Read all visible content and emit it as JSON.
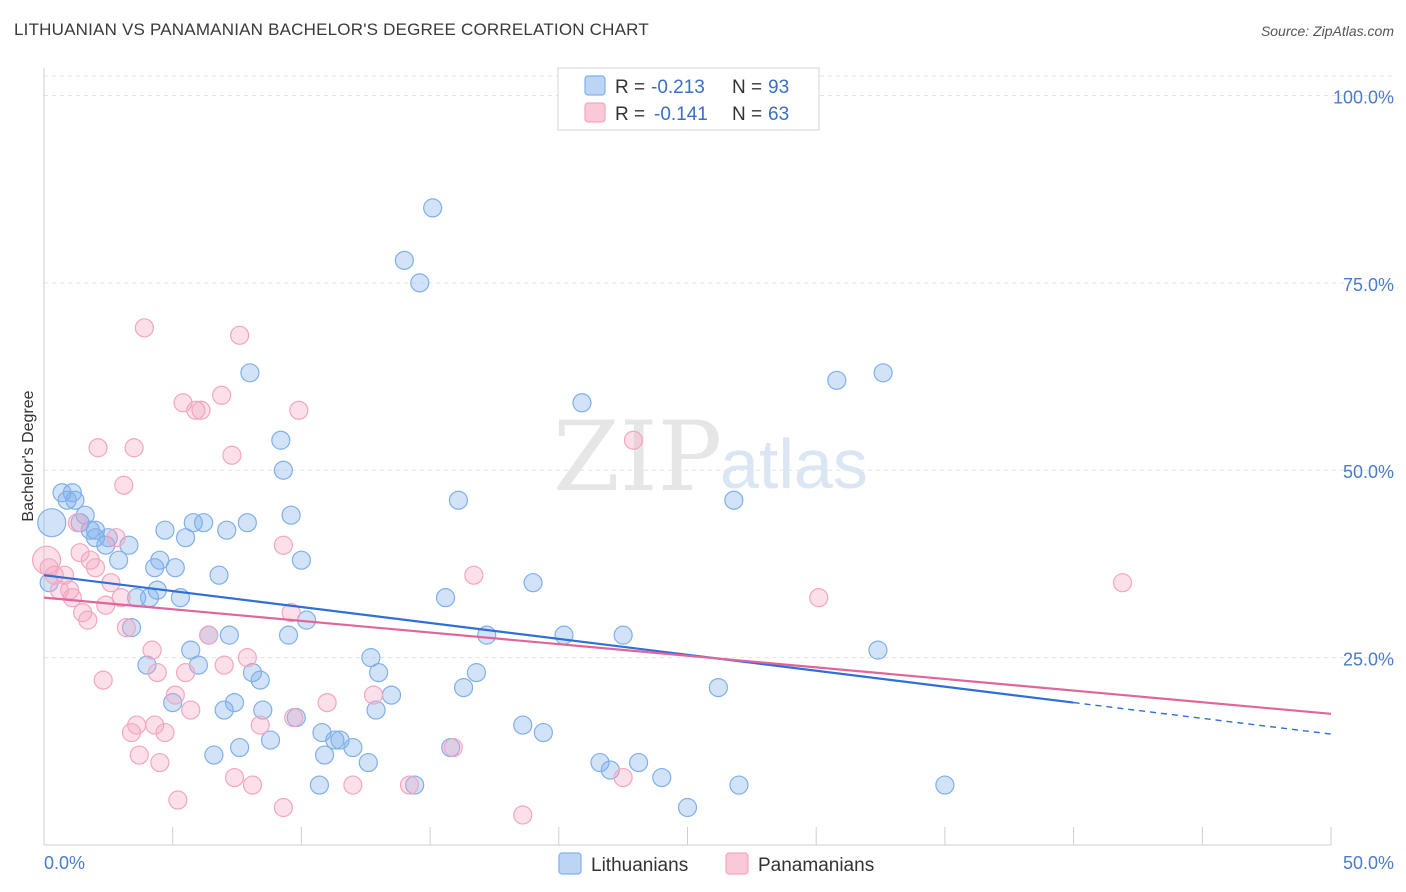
{
  "title": "LITHUANIAN VS PANAMANIAN BACHELOR'S DEGREE CORRELATION CHART",
  "source": "Source: ZipAtlas.com",
  "watermark": {
    "zip": "ZIP",
    "atlas": "atlas"
  },
  "legend": {
    "rows": [
      {
        "r_label": "R =",
        "r_value": "-0.213",
        "n_label": "N =",
        "n_value": "93",
        "color": "#7fb0ea"
      },
      {
        "r_label": "R =",
        "r_value": "-0.141",
        "n_label": "N =",
        "n_value": "63",
        "color": "#f4a6bf"
      }
    ]
  },
  "bottom_legend": [
    "Lithuanians",
    "Panamanians"
  ],
  "chart_data": {
    "type": "scatter",
    "title": "LITHUANIAN VS PANAMANIAN BACHELOR'S DEGREE CORRELATION CHART",
    "xlabel": "",
    "ylabel": "Bachelor's Degree",
    "xlim": [
      0,
      50
    ],
    "ylim": [
      0,
      105
    ],
    "x_tick_labels": [
      "0.0%",
      "50.0%"
    ],
    "y_ticks": [
      25,
      50,
      75,
      100
    ],
    "y_tick_labels": [
      "25.0%",
      "50.0%",
      "75.0%",
      "100.0%"
    ],
    "grid": true,
    "legend_position": "top-center",
    "series": [
      {
        "name": "Lithuanians",
        "color": "#7fb0ea",
        "line_color": "#2f6fd6",
        "r": -0.213,
        "n": 93,
        "trend": {
          "x0": 0,
          "y0": 36.0,
          "x1": 40,
          "y1": 19.0,
          "dash_x_end": 50,
          "dash_y_end": 14.8
        },
        "points": [
          [
            0.3,
            43
          ],
          [
            0.7,
            47
          ],
          [
            0.9,
            46
          ],
          [
            1.1,
            47
          ],
          [
            1.2,
            46
          ],
          [
            1.4,
            43
          ],
          [
            1.6,
            44
          ],
          [
            1.8,
            42
          ],
          [
            2.0,
            42
          ],
          [
            2.0,
            41
          ],
          [
            2.4,
            40
          ],
          [
            2.5,
            41
          ],
          [
            2.9,
            38
          ],
          [
            3.3,
            40
          ],
          [
            3.6,
            33
          ],
          [
            3.4,
            29
          ],
          [
            4.0,
            24
          ],
          [
            4.1,
            33
          ],
          [
            4.3,
            37
          ],
          [
            4.4,
            34
          ],
          [
            4.5,
            38
          ],
          [
            4.7,
            42
          ],
          [
            5.0,
            19
          ],
          [
            5.1,
            37
          ],
          [
            5.3,
            33
          ],
          [
            5.5,
            41
          ],
          [
            5.7,
            26
          ],
          [
            5.8,
            43
          ],
          [
            6.0,
            24
          ],
          [
            6.2,
            43
          ],
          [
            6.4,
            28
          ],
          [
            6.6,
            12
          ],
          [
            6.8,
            36
          ],
          [
            7.0,
            18
          ],
          [
            7.1,
            42
          ],
          [
            7.2,
            28
          ],
          [
            7.4,
            19
          ],
          [
            7.6,
            13
          ],
          [
            7.9,
            43
          ],
          [
            8.0,
            63
          ],
          [
            8.1,
            23
          ],
          [
            8.4,
            22
          ],
          [
            8.5,
            18
          ],
          [
            8.8,
            14
          ],
          [
            9.2,
            54
          ],
          [
            9.3,
            50
          ],
          [
            9.5,
            28
          ],
          [
            9.6,
            44
          ],
          [
            9.8,
            17
          ],
          [
            10.0,
            38
          ],
          [
            10.2,
            30
          ],
          [
            10.7,
            8
          ],
          [
            10.8,
            15
          ],
          [
            10.9,
            12
          ],
          [
            11.3,
            14
          ],
          [
            11.5,
            14
          ],
          [
            12.0,
            13
          ],
          [
            12.6,
            11
          ],
          [
            12.7,
            25
          ],
          [
            12.9,
            18
          ],
          [
            13.0,
            23
          ],
          [
            13.5,
            20
          ],
          [
            14.0,
            78
          ],
          [
            14.6,
            75
          ],
          [
            14.4,
            8
          ],
          [
            15.1,
            85
          ],
          [
            15.8,
            13
          ],
          [
            16.1,
            46
          ],
          [
            16.3,
            21
          ],
          [
            16.8,
            23
          ],
          [
            15.6,
            33
          ],
          [
            17.2,
            28
          ],
          [
            18.6,
            16
          ],
          [
            19.0,
            35
          ],
          [
            19.4,
            15
          ],
          [
            20.2,
            28
          ],
          [
            20.9,
            59
          ],
          [
            21.6,
            11
          ],
          [
            22.0,
            10
          ],
          [
            22.5,
            28
          ],
          [
            23.1,
            11
          ],
          [
            24.0,
            9
          ],
          [
            25.0,
            5
          ],
          [
            26.2,
            21
          ],
          [
            26.8,
            46
          ],
          [
            27.0,
            8
          ],
          [
            30.8,
            62
          ],
          [
            32.6,
            63
          ],
          [
            32.4,
            26
          ],
          [
            35.0,
            8
          ],
          [
            0.2,
            35
          ]
        ]
      },
      {
        "name": "Panamanians",
        "color": "#f4a6bf",
        "line_color": "#e0659a",
        "r": -0.141,
        "n": 63,
        "trend": {
          "x0": 0,
          "y0": 33.0,
          "x1": 50,
          "y1": 17.5
        },
        "points": [
          [
            0.2,
            37
          ],
          [
            0.4,
            36
          ],
          [
            0.6,
            34
          ],
          [
            0.8,
            36
          ],
          [
            1.0,
            34
          ],
          [
            1.1,
            33
          ],
          [
            1.3,
            43
          ],
          [
            1.4,
            39
          ],
          [
            1.5,
            31
          ],
          [
            1.7,
            30
          ],
          [
            1.8,
            38
          ],
          [
            2.0,
            37
          ],
          [
            2.1,
            53
          ],
          [
            2.3,
            22
          ],
          [
            2.4,
            32
          ],
          [
            2.6,
            35
          ],
          [
            2.8,
            41
          ],
          [
            3.0,
            33
          ],
          [
            3.1,
            48
          ],
          [
            3.2,
            29
          ],
          [
            3.4,
            15
          ],
          [
            3.5,
            53
          ],
          [
            3.6,
            16
          ],
          [
            3.7,
            12
          ],
          [
            3.9,
            69
          ],
          [
            4.2,
            26
          ],
          [
            4.3,
            16
          ],
          [
            4.4,
            23
          ],
          [
            4.5,
            11
          ],
          [
            4.7,
            15
          ],
          [
            5.1,
            20
          ],
          [
            5.2,
            6
          ],
          [
            5.4,
            59
          ],
          [
            5.5,
            23
          ],
          [
            5.7,
            18
          ],
          [
            5.9,
            58
          ],
          [
            6.1,
            58
          ],
          [
            6.4,
            28
          ],
          [
            6.9,
            60
          ],
          [
            7.0,
            24
          ],
          [
            7.3,
            52
          ],
          [
            7.4,
            9
          ],
          [
            7.6,
            68
          ],
          [
            7.9,
            25
          ],
          [
            8.1,
            8
          ],
          [
            8.4,
            16
          ],
          [
            9.3,
            5
          ],
          [
            9.6,
            31
          ],
          [
            9.7,
            17
          ],
          [
            9.9,
            58
          ],
          [
            9.3,
            40
          ],
          [
            11.0,
            19
          ],
          [
            12.0,
            8
          ],
          [
            12.8,
            20
          ],
          [
            14.2,
            8
          ],
          [
            15.9,
            13
          ],
          [
            16.7,
            36
          ],
          [
            18.6,
            4
          ],
          [
            22.5,
            9
          ],
          [
            22.9,
            54
          ],
          [
            30.1,
            33
          ],
          [
            41.9,
            35
          ],
          [
            0.1,
            38
          ]
        ]
      }
    ]
  }
}
